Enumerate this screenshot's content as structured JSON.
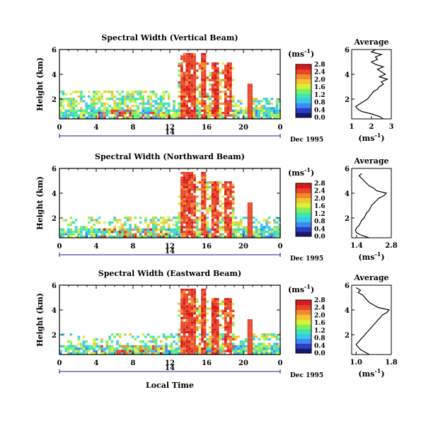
{
  "figure": {
    "x_caption": "Local Time",
    "date_label": "Dec 1995",
    "day_label": "14",
    "avg_title": "Average",
    "colorbar_unit_base": "(ms",
    "colorbar_unit_exp": "-1",
    "colorbar_unit_close": ")",
    "avg_xlabel": "(ms",
    "avg_xlabel_exp": "-1",
    "avg_xlabel_close": ")",
    "colorbar_ticks": [
      "0.0",
      "0.4",
      "0.8",
      "1.2",
      "1.6",
      "2.0",
      "2.4",
      "2.8"
    ]
  },
  "chart_data": [
    {
      "type": "heatmap",
      "title": "Spectral Width (Vertical Beam)",
      "ylabel": "Height (km)",
      "xlabel": "Local Time",
      "x_range": [
        0,
        24
      ],
      "x_ticks": [
        "0",
        "4",
        "8",
        "12",
        "16",
        "20",
        "0"
      ],
      "y_range": [
        0.4,
        6
      ],
      "y_ticks": [
        "2",
        "4",
        "6"
      ],
      "colorbar_range": [
        0,
        2.8
      ],
      "colorbar_ticks": [
        "0.0",
        "0.4",
        "0.8",
        "1.2",
        "1.6",
        "2.0",
        "2.4",
        "2.8"
      ],
      "average": {
        "title": "Average",
        "xlim": [
          1,
          3
        ],
        "x_ticks": [
          "1",
          "2",
          "3"
        ],
        "y_ticks": [
          "2",
          "4",
          "6"
        ],
        "height": [
          0.4,
          0.6,
          0.8,
          1.0,
          1.2,
          1.4,
          1.6,
          1.8,
          2.0,
          2.2,
          2.4,
          2.6,
          2.8,
          3.0,
          3.2,
          3.4,
          3.6,
          3.8,
          4.0,
          4.2,
          4.4,
          4.6,
          4.8,
          5.0,
          5.2,
          5.4,
          5.6,
          5.8,
          6.0
        ],
        "value": [
          2.6,
          2.4,
          2.0,
          1.5,
          1.3,
          1.2,
          1.4,
          1.6,
          1.8,
          1.9,
          2.0,
          2.1,
          2.3,
          2.4,
          2.6,
          2.5,
          2.8,
          2.4,
          2.7,
          2.5,
          2.3,
          2.6,
          2.2,
          2.0,
          2.3,
          2.2,
          2.5,
          2.0,
          2.2
        ]
      }
    },
    {
      "type": "heatmap",
      "title": "Spectral Width (Northward Beam)",
      "ylabel": "Height (km)",
      "xlabel": "Local Time",
      "x_range": [
        0,
        24
      ],
      "x_ticks": [
        "0",
        "4",
        "8",
        "12",
        "16",
        "20",
        "0"
      ],
      "y_range": [
        0.4,
        6
      ],
      "y_ticks": [
        "2",
        "4",
        "6"
      ],
      "colorbar_range": [
        0,
        2.8
      ],
      "colorbar_ticks": [
        "0.0",
        "0.4",
        "0.8",
        "1.2",
        "1.6",
        "2.0",
        "2.4",
        "2.8"
      ],
      "average": {
        "title": "Average",
        "xlim": [
          1.2,
          2.8
        ],
        "x_ticks": [
          "1.4",
          "2.8"
        ],
        "y_ticks": [
          "2",
          "4",
          "6"
        ],
        "height": [
          0.4,
          0.6,
          0.8,
          1.0,
          1.2,
          1.4,
          1.6,
          1.8,
          2.0,
          2.2,
          2.4,
          2.6,
          2.8,
          3.0,
          3.2,
          3.4,
          3.6,
          3.8,
          4.0,
          4.2,
          4.4,
          4.6,
          4.8,
          5.0,
          5.2,
          5.4,
          5.6
        ],
        "value": [
          1.9,
          1.6,
          1.4,
          1.35,
          1.4,
          1.5,
          1.55,
          1.6,
          1.7,
          1.75,
          1.8,
          1.9,
          1.95,
          2.0,
          2.1,
          2.2,
          2.3,
          2.5,
          2.6,
          2.2,
          2.1,
          1.9,
          1.8,
          1.7,
          1.6,
          1.5,
          1.6
        ]
      }
    },
    {
      "type": "heatmap",
      "title": "Spectral Width (Eastward Beam)",
      "ylabel": "Height (km)",
      "xlabel": "Local Time",
      "x_range": [
        0,
        24
      ],
      "x_ticks": [
        "0",
        "4",
        "8",
        "12",
        "16",
        "20",
        "0"
      ],
      "y_range": [
        0.4,
        6
      ],
      "y_ticks": [
        "2",
        "4",
        "6"
      ],
      "colorbar_range": [
        0,
        2.8
      ],
      "colorbar_ticks": [
        "0.0",
        "0.4",
        "0.8",
        "1.2",
        "1.6",
        "2.0",
        "2.4",
        "2.8"
      ],
      "average": {
        "title": "Average",
        "xlim": [
          0.9,
          1.8
        ],
        "x_ticks": [
          "1.0",
          "1.8"
        ],
        "y_ticks": [
          "2",
          "4",
          "6"
        ],
        "height": [
          0.4,
          0.6,
          0.8,
          1.0,
          1.2,
          1.4,
          1.6,
          1.8,
          2.0,
          2.2,
          2.4,
          2.6,
          2.8,
          3.0,
          3.2,
          3.4,
          3.6,
          3.8,
          4.0,
          4.2,
          4.4,
          4.6,
          4.8,
          5.0,
          5.2,
          5.4,
          5.6,
          5.8
        ],
        "value": [
          1.3,
          1.2,
          1.1,
          1.05,
          1.0,
          1.05,
          1.1,
          1.15,
          1.2,
          1.25,
          1.3,
          1.35,
          1.4,
          1.45,
          1.5,
          1.55,
          1.6,
          1.7,
          1.75,
          1.5,
          1.4,
          1.3,
          1.25,
          1.2,
          1.15,
          1.05,
          1.1,
          1.0
        ]
      }
    }
  ]
}
